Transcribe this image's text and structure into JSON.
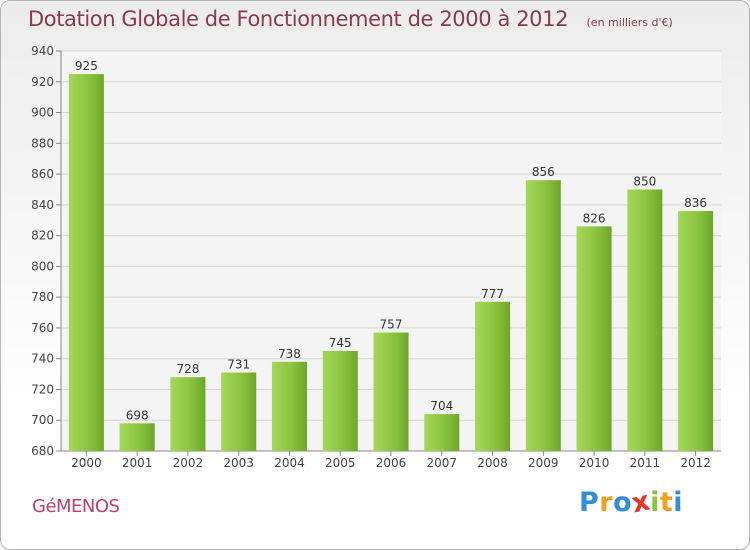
{
  "title": "Dotation Globale de Fonctionnement de 2000 à 2012",
  "subtitle": "(en milliers d'€)",
  "commune": "GéMENOS",
  "logo": {
    "text": "Proxiti",
    "letters": [
      {
        "ch": "P",
        "color": "#2f8fd8"
      },
      {
        "ch": "r",
        "color": "#f0a020"
      },
      {
        "ch": "o",
        "color": "#2f8fd8"
      },
      {
        "ch": "x",
        "color": "#e8322c"
      },
      {
        "ch": "i",
        "color": "#8cc43c"
      },
      {
        "ch": "t",
        "color": "#f0a020"
      },
      {
        "ch": "i",
        "color": "#2f8fd8"
      }
    ]
  },
  "colors": {
    "bar": "#8bc53f",
    "bar_light": "#a6d65a",
    "bar_dark": "#6fa62b",
    "title": "#8a3a4a",
    "commune": "#bf3e70",
    "grid": "#d6d6d6"
  },
  "chart_data": {
    "type": "bar",
    "categories": [
      "2000",
      "2001",
      "2002",
      "2003",
      "2004",
      "2005",
      "2006",
      "2007",
      "2008",
      "2009",
      "2010",
      "2011",
      "2012"
    ],
    "values": [
      925,
      698,
      728,
      731,
      738,
      745,
      757,
      704,
      777,
      856,
      826,
      850,
      836
    ],
    "ylim": [
      680,
      940
    ],
    "yticks": [
      680,
      700,
      720,
      740,
      760,
      780,
      800,
      820,
      840,
      860,
      880,
      900,
      920,
      940
    ],
    "grid": true,
    "data_labels": true
  }
}
